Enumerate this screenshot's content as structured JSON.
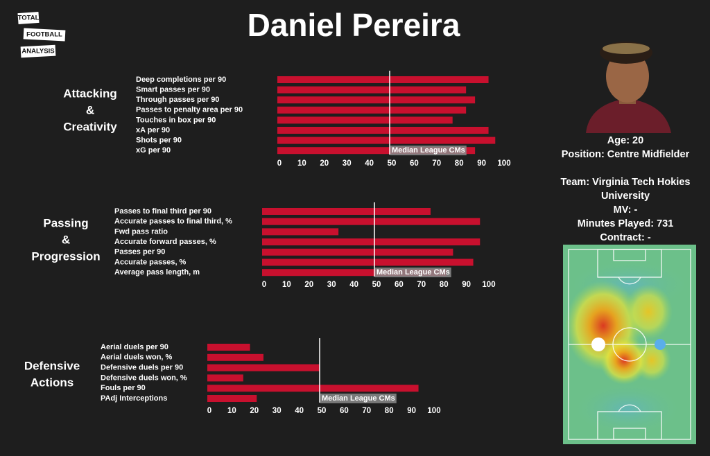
{
  "title": "Daniel Pereira",
  "logo": [
    "TOTAL",
    "FOOTBALL",
    "ANALYSIS"
  ],
  "profile": [
    "Age: 20",
    "Position: Centre Midfielder",
    "Team: Virginia Tech Hokies",
    "University",
    "MV: -",
    "Minutes Played: 731",
    "Contract: -"
  ],
  "chart_data": [
    {
      "type": "barh",
      "title": [
        "Attacking",
        "&",
        "Creativity"
      ],
      "categories": [
        "Deep completions per 90",
        "Smart passes per 90",
        "Through passes per 90",
        "Passes to penalty area per 90",
        "Touches in box per 90",
        "xA per 90",
        "Shots per 90",
        "xG per 90"
      ],
      "values": [
        94,
        84,
        88,
        84,
        78,
        94,
        97,
        88
      ],
      "color": "#c8102e",
      "xlim": [
        0,
        100
      ],
      "xticks": [
        0,
        10,
        20,
        30,
        40,
        50,
        60,
        70,
        80,
        90,
        100
      ],
      "median": 50,
      "median_label": "Median League CMs"
    },
    {
      "type": "barh",
      "title": [
        "Passing",
        "&",
        "Progression"
      ],
      "categories": [
        "Passes to final third per 90",
        "Accurate passes to final third, %",
        "Fwd pass ratio",
        "Accurate forward passes, %",
        "Passes per 90",
        "Accurate passes, %",
        "Average pass length, m"
      ],
      "values": [
        75,
        97,
        34,
        97,
        85,
        94,
        82
      ],
      "color": "#c8102e",
      "xlim": [
        0,
        100
      ],
      "xticks": [
        0,
        10,
        20,
        30,
        40,
        50,
        60,
        70,
        80,
        90,
        100
      ],
      "median": 50,
      "median_label": "Median League CMs"
    },
    {
      "type": "barh",
      "title": [
        "Defensive",
        "Actions"
      ],
      "categories": [
        "Aerial duels per 90",
        "Aerial duels won, %",
        "Defensive duels per 90",
        "Defensive duels won, %",
        "Fouls per 90",
        "PAdj Interceptions"
      ],
      "values": [
        19,
        25,
        50,
        16,
        94,
        22
      ],
      "color": "#c8102e",
      "xlim": [
        0,
        100
      ],
      "xticks": [
        0,
        10,
        20,
        30,
        40,
        50,
        60,
        70,
        80,
        90,
        100
      ],
      "median": 50,
      "median_label": "Median League CMs"
    }
  ]
}
